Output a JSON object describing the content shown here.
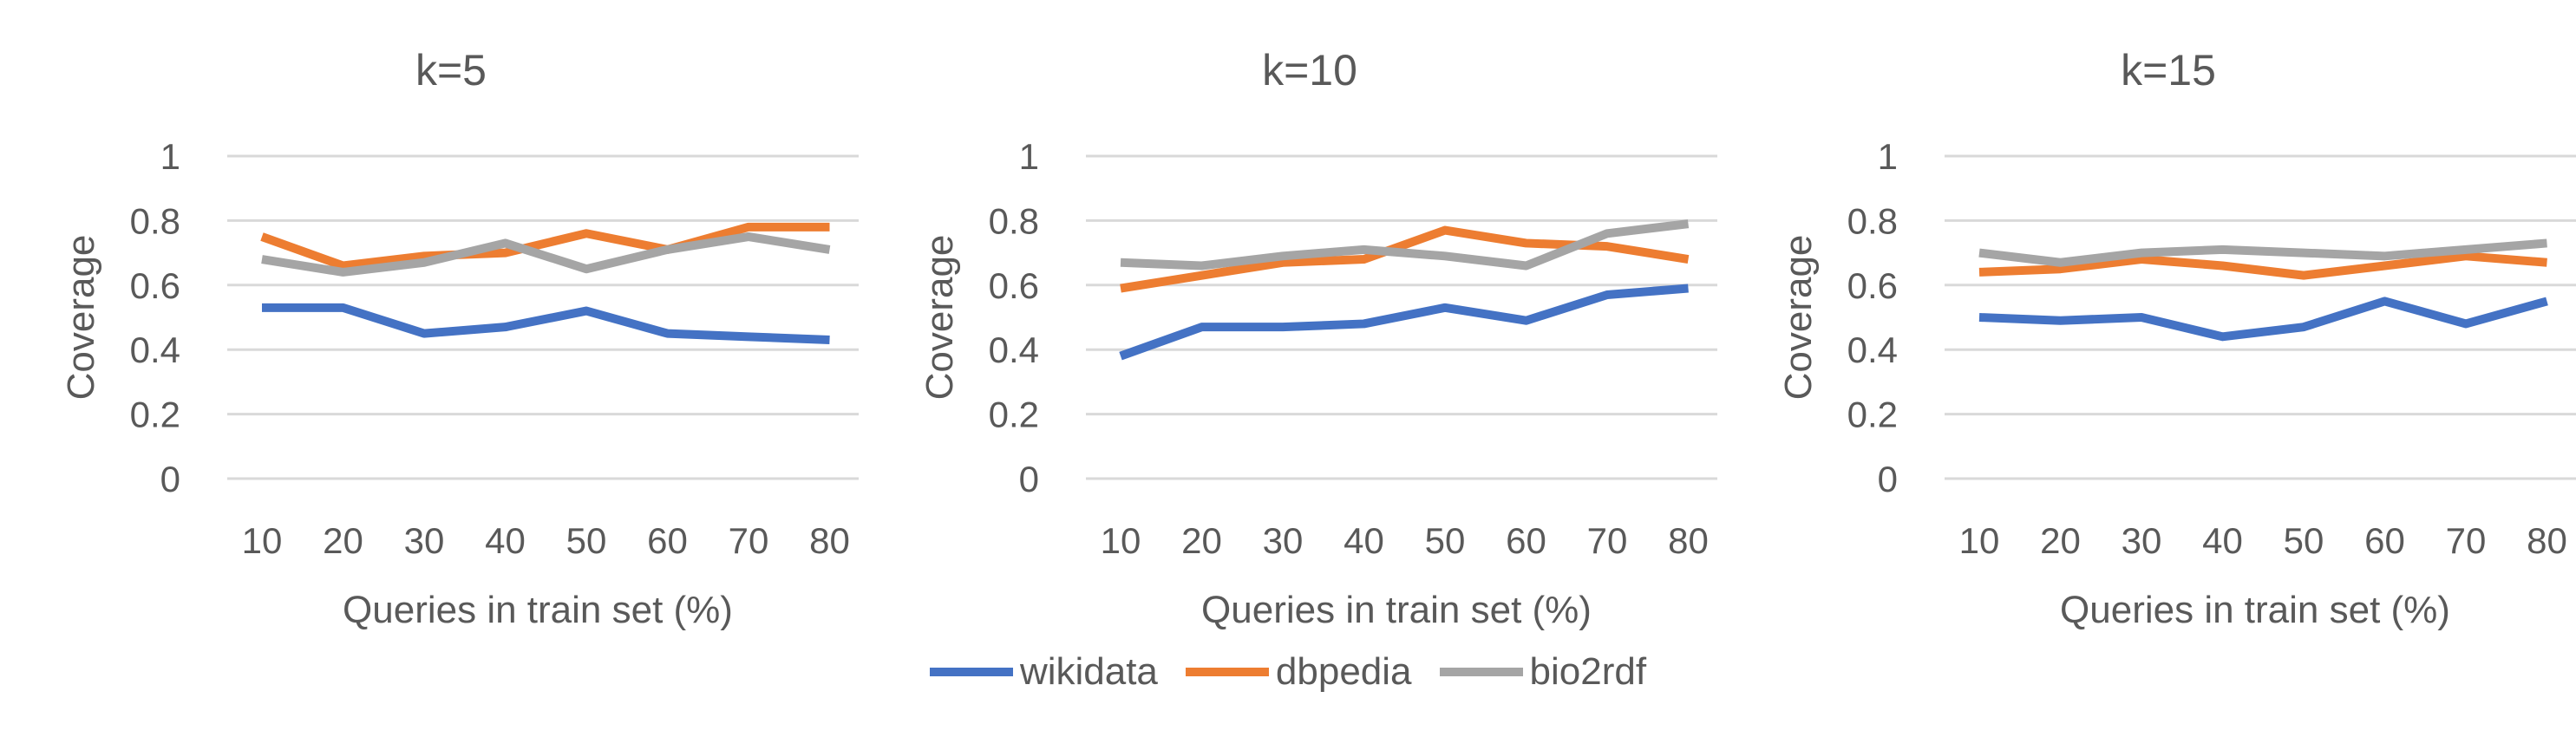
{
  "chart_data": [
    {
      "type": "line",
      "title": "k=5",
      "xlabel": "Queries in train set (%)",
      "ylabel": "Coverage",
      "categories": [
        "10",
        "20",
        "30",
        "40",
        "50",
        "60",
        "70",
        "80"
      ],
      "ylim": [
        0,
        1
      ],
      "yticks": [
        "0",
        "0.2",
        "0.4",
        "0.6",
        "0.8",
        "1"
      ],
      "grid": true,
      "series": [
        {
          "name": "wikidata",
          "color": "#4472C4",
          "values": [
            0.53,
            0.53,
            0.45,
            0.47,
            0.52,
            0.45,
            0.44,
            0.43
          ]
        },
        {
          "name": "dbpedia",
          "color": "#ED7D31",
          "values": [
            0.75,
            0.66,
            0.69,
            0.7,
            0.76,
            0.71,
            0.78,
            0.78
          ]
        },
        {
          "name": "bio2rdf",
          "color": "#A5A5A5",
          "values": [
            0.68,
            0.64,
            0.67,
            0.73,
            0.65,
            0.71,
            0.75,
            0.71
          ]
        }
      ]
    },
    {
      "type": "line",
      "title": "k=10",
      "xlabel": "Queries in train set (%)",
      "ylabel": "Coverage",
      "categories": [
        "10",
        "20",
        "30",
        "40",
        "50",
        "60",
        "70",
        "80"
      ],
      "ylim": [
        0,
        1
      ],
      "yticks": [
        "0",
        "0.2",
        "0.4",
        "0.6",
        "0.8",
        "1"
      ],
      "grid": true,
      "series": [
        {
          "name": "wikidata",
          "color": "#4472C4",
          "values": [
            0.38,
            0.47,
            0.47,
            0.48,
            0.53,
            0.49,
            0.57,
            0.59
          ]
        },
        {
          "name": "dbpedia",
          "color": "#ED7D31",
          "values": [
            0.59,
            0.63,
            0.67,
            0.68,
            0.77,
            0.73,
            0.72,
            0.68
          ]
        },
        {
          "name": "bio2rdf",
          "color": "#A5A5A5",
          "values": [
            0.67,
            0.66,
            0.69,
            0.71,
            0.69,
            0.66,
            0.76,
            0.79
          ]
        }
      ]
    },
    {
      "type": "line",
      "title": "k=15",
      "xlabel": "Queries in train set (%)",
      "ylabel": "Coverage",
      "categories": [
        "10",
        "20",
        "30",
        "40",
        "50",
        "60",
        "70",
        "80"
      ],
      "ylim": [
        0,
        1
      ],
      "yticks": [
        "0",
        "0.2",
        "0.4",
        "0.6",
        "0.8",
        "1"
      ],
      "grid": true,
      "series": [
        {
          "name": "wikidata",
          "color": "#4472C4",
          "values": [
            0.5,
            0.49,
            0.5,
            0.44,
            0.47,
            0.55,
            0.48,
            0.55
          ]
        },
        {
          "name": "dbpedia",
          "color": "#ED7D31",
          "values": [
            0.64,
            0.65,
            0.68,
            0.66,
            0.63,
            0.66,
            0.69,
            0.67
          ]
        },
        {
          "name": "bio2rdf",
          "color": "#A5A5A5",
          "values": [
            0.7,
            0.67,
            0.7,
            0.71,
            0.7,
            0.69,
            0.71,
            0.73
          ]
        }
      ]
    }
  ],
  "legend": {
    "placement": "bottom",
    "items": [
      {
        "label": "wikidata",
        "color": "#4472C4"
      },
      {
        "label": "dbpedia",
        "color": "#ED7D31"
      },
      {
        "label": "bio2rdf",
        "color": "#A5A5A5"
      }
    ]
  }
}
